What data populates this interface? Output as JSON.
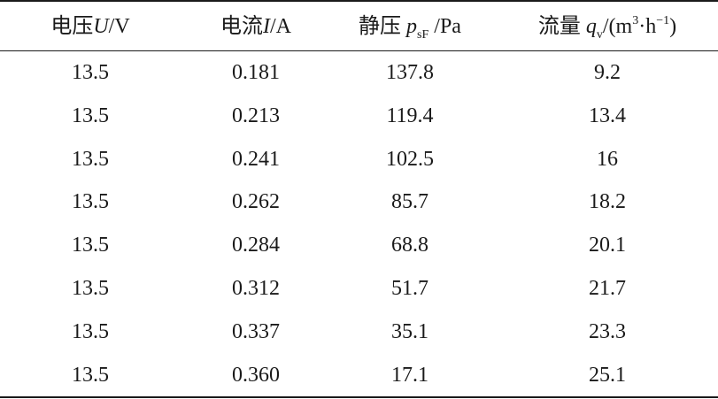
{
  "headers": {
    "voltage": {
      "prefix": "电压",
      "symbol": "U",
      "unit": "/V"
    },
    "current": {
      "prefix": "电流",
      "symbol": "I",
      "unit": "/A"
    },
    "static_pressure": {
      "prefix": "静压",
      "symbol": "p",
      "subscript": "sF",
      "unit": " /Pa"
    },
    "flow": {
      "prefix": "流量",
      "symbol": "q",
      "subscript": "v",
      "unit_open": "/(m",
      "unit_sup1": "3",
      "unit_mid": "·h",
      "unit_sup2": "−1",
      "unit_close": ")"
    }
  },
  "rows": [
    {
      "voltage": "13.5",
      "current": "0.181",
      "static_pressure": "137.8",
      "flow": "9.2"
    },
    {
      "voltage": "13.5",
      "current": "0.213",
      "static_pressure": "119.4",
      "flow": "13.4"
    },
    {
      "voltage": "13.5",
      "current": "0.241",
      "static_pressure": "102.5",
      "flow": "16"
    },
    {
      "voltage": "13.5",
      "current": "0.262",
      "static_pressure": "85.7",
      "flow": "18.2"
    },
    {
      "voltage": "13.5",
      "current": "0.284",
      "static_pressure": "68.8",
      "flow": "20.1"
    },
    {
      "voltage": "13.5",
      "current": "0.312",
      "static_pressure": "51.7",
      "flow": "21.7"
    },
    {
      "voltage": "13.5",
      "current": "0.337",
      "static_pressure": "35.1",
      "flow": "23.3"
    },
    {
      "voltage": "13.5",
      "current": "0.360",
      "static_pressure": "17.1",
      "flow": "25.1"
    }
  ]
}
